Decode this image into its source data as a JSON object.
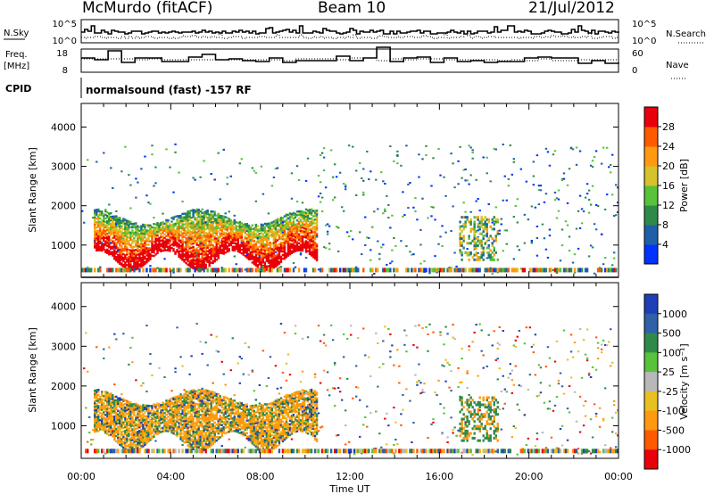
{
  "header": {
    "site": "McMurdo (fitACF)",
    "beam": "Beam 10",
    "date": "21/Jul/2012"
  },
  "sky_panel": {
    "left_label": "N.Sky",
    "right_label": "N.Search",
    "left_ticks": [
      "10^5",
      "10^0"
    ],
    "right_ticks": [
      "10^5",
      "10^0"
    ]
  },
  "freq_panel": {
    "left_label_line1": "Freq.",
    "left_label_line2": "[MHz]",
    "left_ticks": [
      "18",
      "8"
    ],
    "right_label": "Nave",
    "right_ticks": [
      "60",
      "0"
    ]
  },
  "cpid": {
    "label": "CPID",
    "value": "normalsound (fast) -157 RF"
  },
  "xaxis": {
    "title": "Time UT",
    "ticks": [
      "00:00",
      "04:00",
      "08:00",
      "12:00",
      "16:00",
      "20:00",
      "00:00"
    ]
  },
  "chart_data": [
    {
      "type": "heatmap",
      "name": "power",
      "ylabel": "Slant Range [km]",
      "yticks": [
        "1000",
        "2000",
        "3000",
        "4000"
      ],
      "ylim": [
        180,
        4600
      ],
      "xlim_hours": [
        0,
        24
      ],
      "colorbar": {
        "title": "Power [dB]",
        "ticks": [
          "4",
          "8",
          "12",
          "16",
          "20",
          "24",
          "28"
        ],
        "colors": [
          "#0033ff",
          "#1f5fa8",
          "#2f8a4a",
          "#57c23a",
          "#d6c22a",
          "#ff9a10",
          "#ff5a00",
          "#e8000a"
        ]
      },
      "regions": [
        {
          "t": [
            0.5,
            10.5
          ],
          "r": [
            600,
            2000
          ],
          "level": "high"
        },
        {
          "t": [
            10.5,
            16.5
          ],
          "r": [
            200,
            3600
          ],
          "level": "sparse"
        },
        {
          "t": [
            16.8,
            18.6
          ],
          "r": [
            400,
            1800
          ],
          "level": "medium"
        },
        {
          "t": [
            18.6,
            24
          ],
          "r": [
            200,
            3500
          ],
          "level": "sparse"
        }
      ]
    },
    {
      "type": "heatmap",
      "name": "velocity",
      "ylabel": "Slant Range [km]",
      "yticks": [
        "1000",
        "2000",
        "3000",
        "4000"
      ],
      "ylim": [
        180,
        4600
      ],
      "xlim_hours": [
        0,
        24
      ],
      "colorbar": {
        "title": "Velocity [m s⁻¹]",
        "ticks": [
          "1000",
          "500",
          "100",
          "25",
          "-25",
          "-100",
          "-500",
          "-1000"
        ],
        "colors": [
          "#1f3fb8",
          "#2f60a8",
          "#2f8a4a",
          "#57c23a",
          "#b8b8b8",
          "#e8c020",
          "#ff9a10",
          "#ff5a00",
          "#e8000a"
        ]
      }
    }
  ]
}
